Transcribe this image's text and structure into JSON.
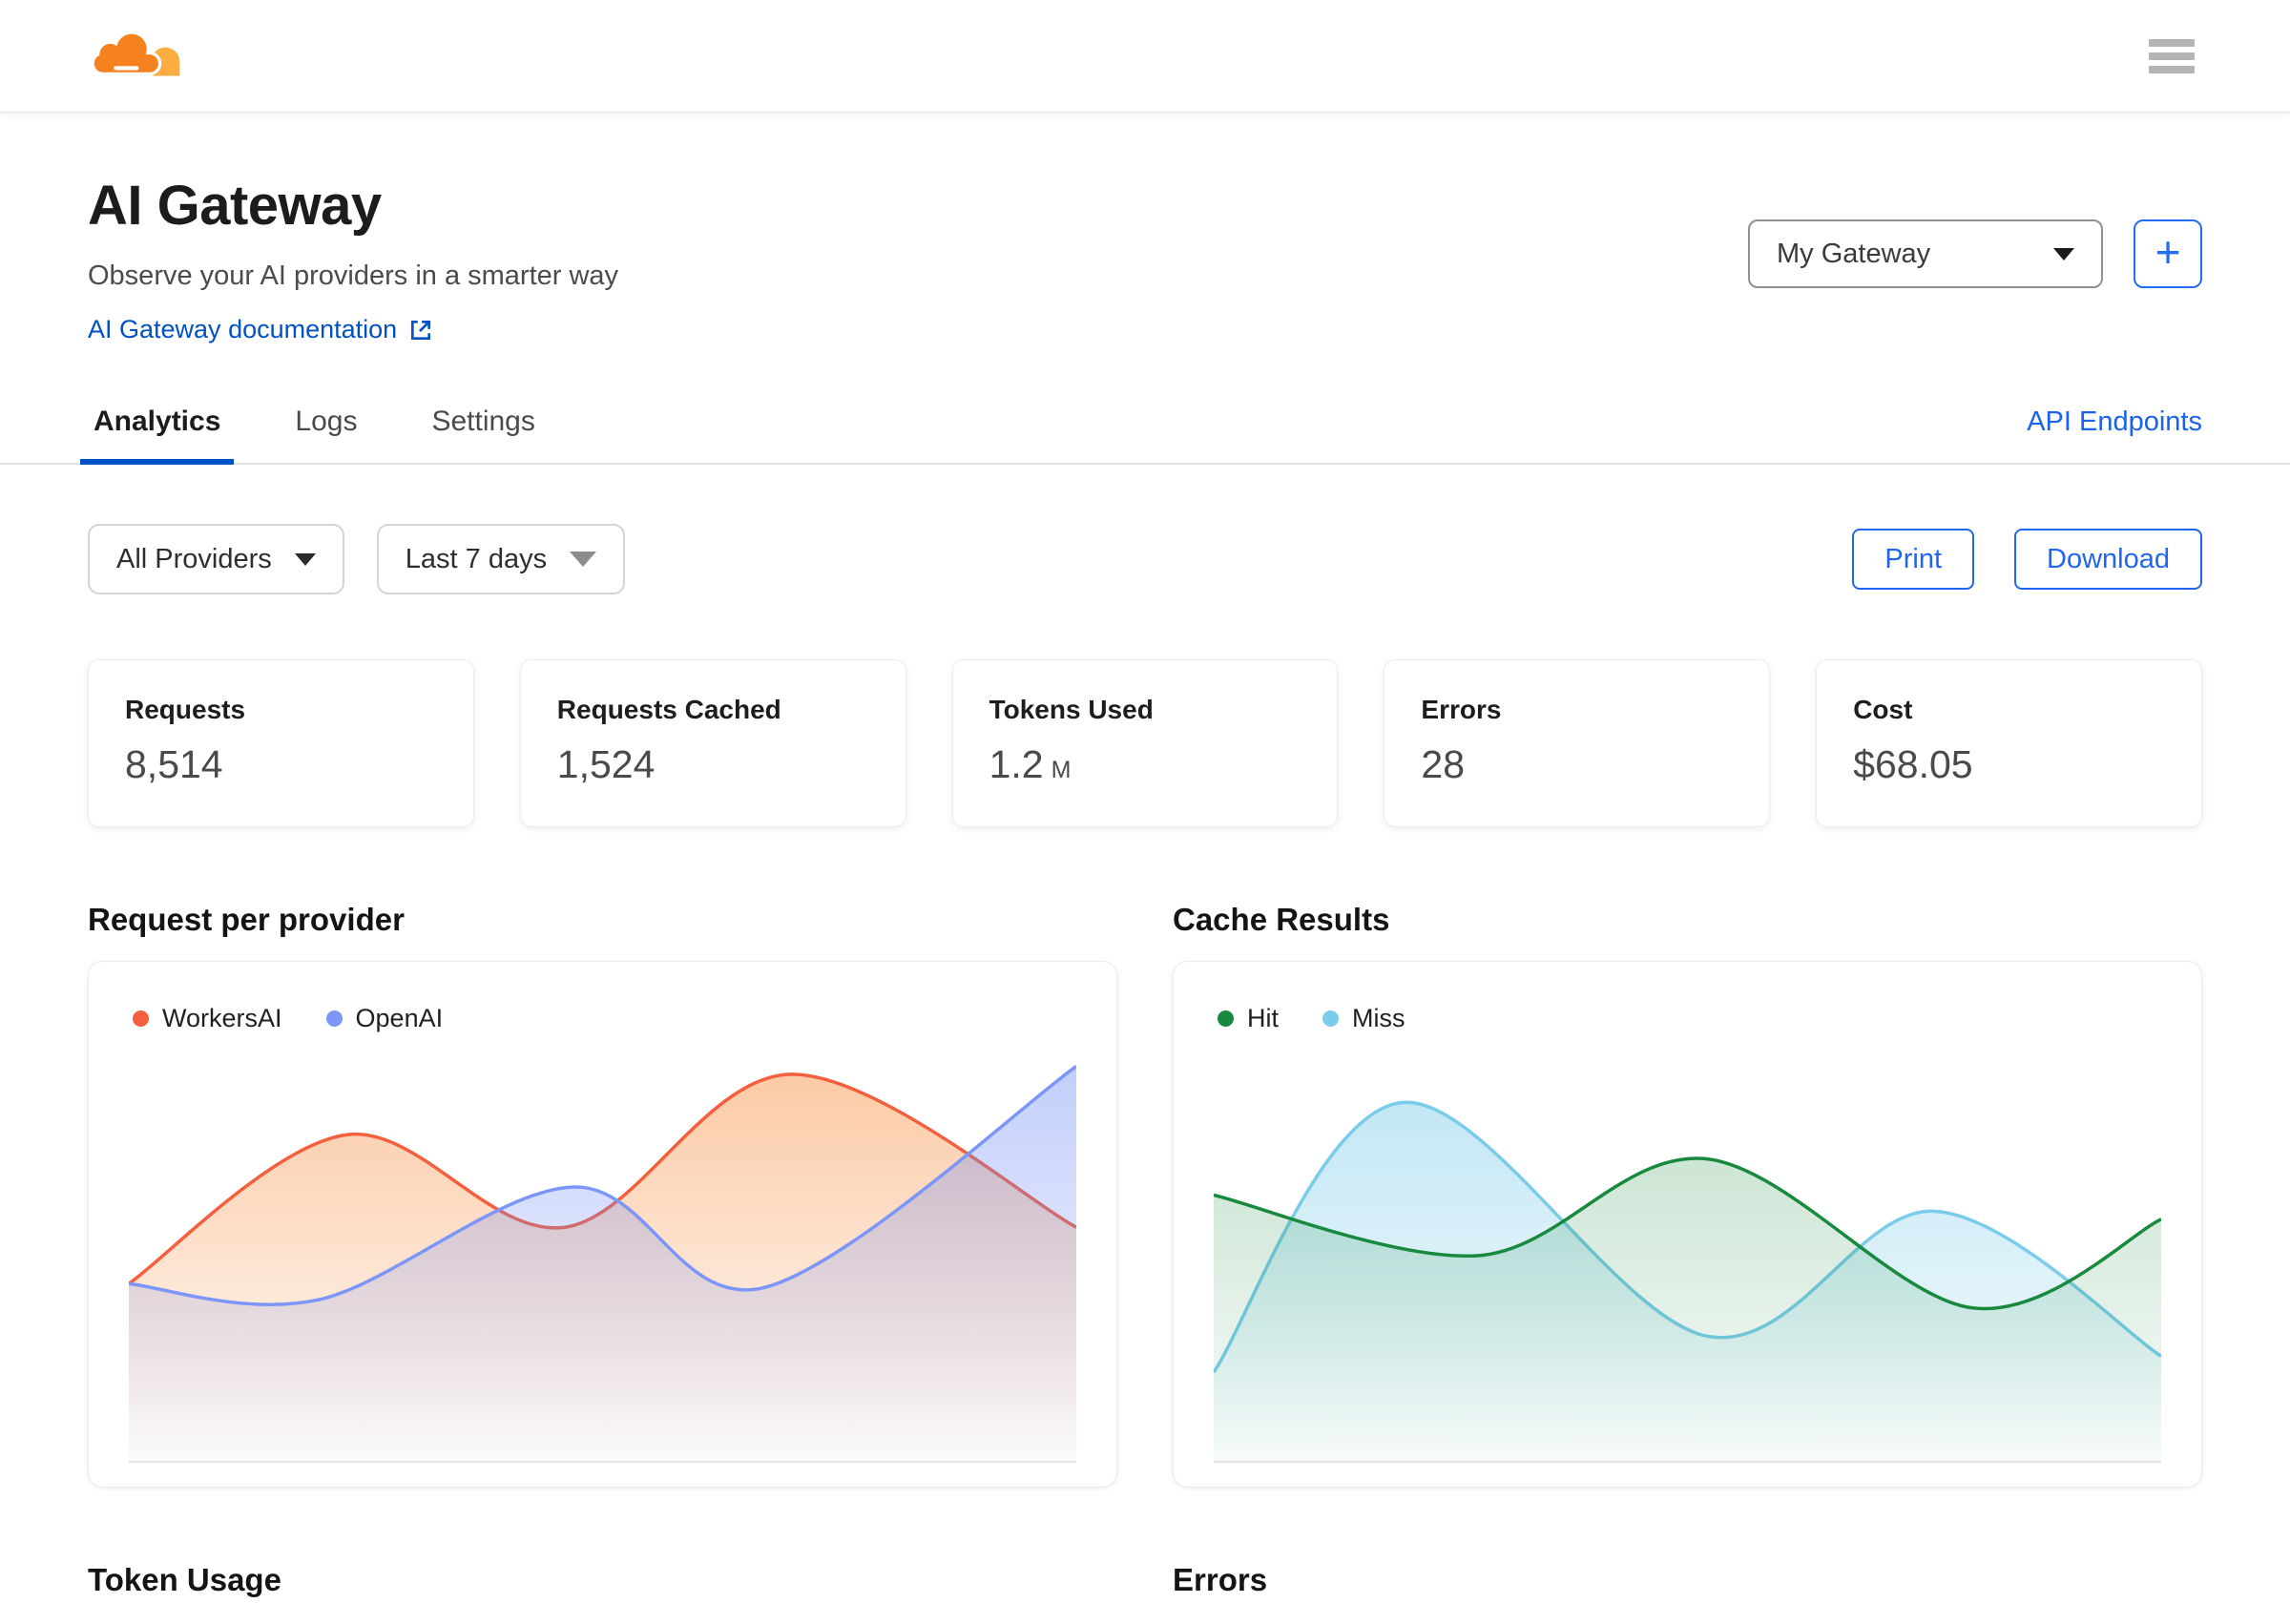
{
  "topbar": {
    "logo": "cloudflare",
    "menu_icon": "hamburger-menu-icon"
  },
  "header": {
    "title": "AI Gateway",
    "subtitle": "Observe your AI providers in a smarter way",
    "doc_link": "AI Gateway documentation",
    "doc_link_icon": "external-link-icon",
    "gateway_select_value": "My Gateway",
    "add_button": "+"
  },
  "tabs": [
    {
      "label": "Analytics",
      "active": true
    },
    {
      "label": "Logs",
      "active": false
    },
    {
      "label": "Settings",
      "active": false
    }
  ],
  "api_endpoints_link": "API Endpoints",
  "toolbar": {
    "provider_filter_value": "All Providers",
    "date_range_value": "Last 7 days",
    "print_label": "Print",
    "download_label": "Download"
  },
  "stats": [
    {
      "label": "Requests",
      "value": "8,514"
    },
    {
      "label": "Requests Cached",
      "value": "1,524"
    },
    {
      "label": "Tokens Used",
      "value": "1.2",
      "suffix": "M"
    },
    {
      "label": "Errors",
      "value": "28"
    },
    {
      "label": "Cost",
      "value": "$68.05"
    }
  ],
  "sections": {
    "tokens": "Token Usage",
    "errors": "Errors"
  },
  "colors": {
    "accent_blue": "#0051c3",
    "button_blue": "#2166f0",
    "workers_ai": "#f4603e",
    "openai": "#7b96f8",
    "hit_green": "#178a3d",
    "miss_blue": "#7accea",
    "cloudflare_orange": "#f6821f",
    "cloudflare_light_orange": "#fbad41"
  },
  "chart_data": [
    {
      "type": "area",
      "title": "Request per provider",
      "grid": false,
      "legend_position": "top-left",
      "x": "last 7 days (no axis labels shown)",
      "ylim": [
        0,
        100
      ],
      "series": [
        {
          "name": "WorkersAI",
          "z": 0,
          "color": "#f4603e",
          "fill_from": "rgba(248,150,77,0.50)",
          "fill_to": "rgba(248,150,77,0.02)",
          "points": [
            [
              0,
              44
            ],
            [
              23,
              81
            ],
            [
              46,
              58
            ],
            [
              70,
              96
            ],
            [
              100,
              58
            ]
          ]
        },
        {
          "name": "OpenAI",
          "z": 1,
          "color": "#7b96f8",
          "fill_from": "rgba(110,139,245,0.42)",
          "fill_to": "rgba(110,139,245,0.02)",
          "points": [
            [
              0,
              44
            ],
            [
              20,
              40
            ],
            [
              47,
              68
            ],
            [
              67,
              43
            ],
            [
              100,
              98
            ]
          ]
        }
      ]
    },
    {
      "type": "area",
      "title": "Cache Results",
      "grid": false,
      "legend_position": "top-left",
      "x": "last 7 days (no axis labels shown)",
      "ylim": [
        0,
        100
      ],
      "series": [
        {
          "name": "Hit",
          "z": 1,
          "color": "#178a3d",
          "fill_from": "rgba(24,138,61,0.22)",
          "fill_to": "rgba(24,138,61,0.02)",
          "points": [
            [
              0,
              66
            ],
            [
              28,
              51
            ],
            [
              52,
              75
            ],
            [
              80,
              38
            ],
            [
              100,
              60
            ]
          ]
        },
        {
          "name": "Miss",
          "z": 0,
          "color": "#7accea",
          "fill_from": "rgba(135,207,233,0.50)",
          "fill_to": "rgba(135,207,233,0.03)",
          "points": [
            [
              0,
              22
            ],
            [
              20,
              89
            ],
            [
              52,
              31
            ],
            [
              76,
              62
            ],
            [
              100,
              26
            ]
          ]
        }
      ]
    }
  ]
}
